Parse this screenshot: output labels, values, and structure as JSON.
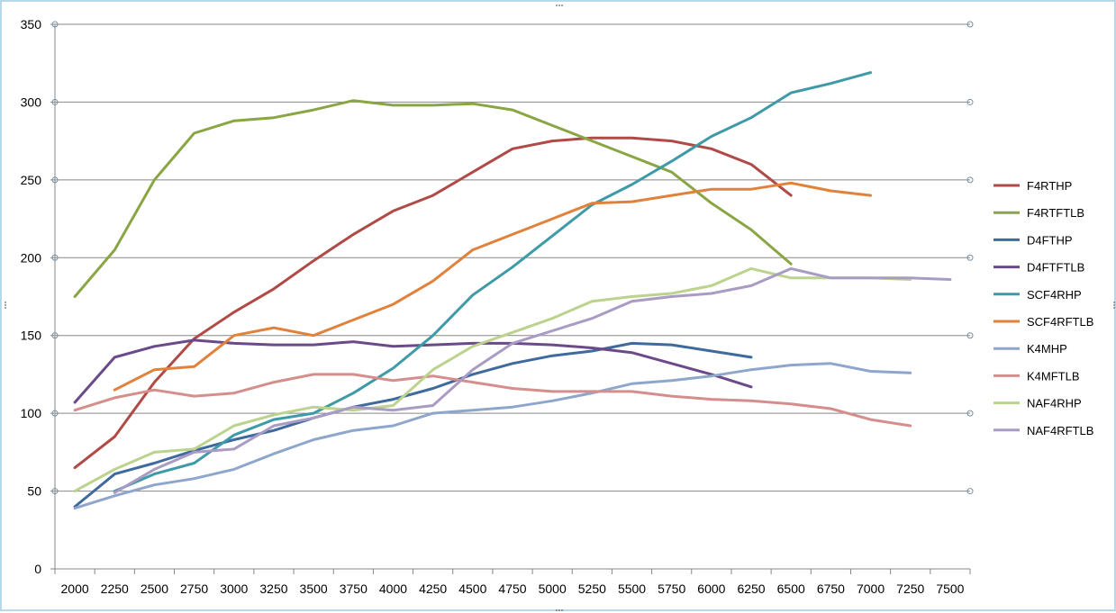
{
  "chart_data": {
    "type": "line",
    "x": [
      2000,
      2250,
      2500,
      2750,
      3000,
      3250,
      3500,
      3750,
      4000,
      4250,
      4500,
      4750,
      5000,
      5250,
      5500,
      5750,
      6000,
      6250,
      6500,
      6750,
      7000,
      7250,
      7500
    ],
    "x_tick_labels": [
      "2000",
      "2250",
      "2500",
      "2750",
      "3000",
      "3250",
      "3500",
      "3750",
      "4000",
      "4250",
      "4500",
      "4750",
      "5000",
      "5250",
      "5500",
      "5750",
      "6000",
      "6250",
      "6500",
      "6750",
      "7000",
      "7250",
      "7500"
    ],
    "ylim": [
      0,
      350
    ],
    "y_ticks": [
      0,
      50,
      100,
      150,
      200,
      250,
      300,
      350
    ],
    "y_tick_labels": [
      "0",
      "50",
      "100",
      "150",
      "200",
      "250",
      "300",
      "350"
    ],
    "grid": "horizontal",
    "legend_position": "right",
    "title": "",
    "xlabel": "",
    "ylabel": "",
    "series": [
      {
        "name": "F4RTHP",
        "color": "#b04a47",
        "values": [
          65,
          85,
          120,
          148,
          165,
          180,
          198,
          215,
          230,
          240,
          255,
          270,
          275,
          277,
          277,
          275,
          270,
          260,
          240,
          null,
          null,
          null,
          null
        ]
      },
      {
        "name": "F4RTFTLB",
        "color": "#8aa544",
        "values": [
          175,
          205,
          250,
          280,
          288,
          290,
          295,
          301,
          298,
          298,
          299,
          295,
          285,
          275,
          265,
          255,
          235,
          218,
          196,
          null,
          null,
          null,
          null
        ]
      },
      {
        "name": "D4FTHP",
        "color": "#3f6a9d",
        "values": [
          40,
          61,
          68,
          76,
          83,
          89,
          97,
          104,
          109,
          116,
          125,
          132,
          137,
          140,
          145,
          144,
          140,
          136,
          null,
          null,
          null,
          null,
          null
        ]
      },
      {
        "name": "D4FTFTLB",
        "color": "#6b4a8a",
        "values": [
          107,
          136,
          143,
          147,
          145,
          144,
          144,
          146,
          143,
          144,
          145,
          145,
          144,
          142,
          139,
          132,
          125,
          117,
          null,
          null,
          null,
          null,
          null
        ]
      },
      {
        "name": "SCF4RHP",
        "color": "#3f9aa8",
        "values": [
          null,
          50,
          61,
          68,
          86,
          96,
          100,
          113,
          129,
          150,
          176,
          194,
          214,
          234,
          247,
          262,
          278,
          290,
          306,
          312,
          319,
          null,
          null
        ]
      },
      {
        "name": "SCF4RFTLB",
        "color": "#e0823b",
        "values": [
          null,
          115,
          128,
          130,
          150,
          155,
          150,
          160,
          170,
          185,
          205,
          215,
          225,
          235,
          236,
          240,
          244,
          244,
          248,
          243,
          240,
          null,
          null
        ]
      },
      {
        "name": "K4MHP",
        "color": "#8fa6cc",
        "values": [
          39,
          47,
          54,
          58,
          64,
          74,
          83,
          89,
          92,
          100,
          102,
          104,
          108,
          113,
          119,
          121,
          124,
          128,
          131,
          132,
          127,
          126,
          null
        ]
      },
      {
        "name": "K4MFTLB",
        "color": "#d48f8c",
        "values": [
          102,
          110,
          115,
          111,
          113,
          120,
          125,
          125,
          121,
          124,
          120,
          116,
          114,
          114,
          114,
          111,
          109,
          108,
          106,
          103,
          96,
          92,
          null
        ]
      },
      {
        "name": "NAF4RHP",
        "color": "#bcd38d",
        "values": [
          50,
          64,
          75,
          77,
          92,
          99,
          104,
          102,
          105,
          128,
          143,
          152,
          161,
          172,
          175,
          177,
          182,
          193,
          187,
          187,
          187,
          186,
          null
        ]
      },
      {
        "name": "NAF4RFTLB",
        "color": "#a99bc3",
        "values": [
          null,
          49,
          64,
          75,
          77,
          92,
          97,
          104,
          102,
          105,
          128,
          145,
          153,
          161,
          172,
          175,
          177,
          182,
          193,
          187,
          187,
          187,
          186
        ]
      }
    ]
  }
}
